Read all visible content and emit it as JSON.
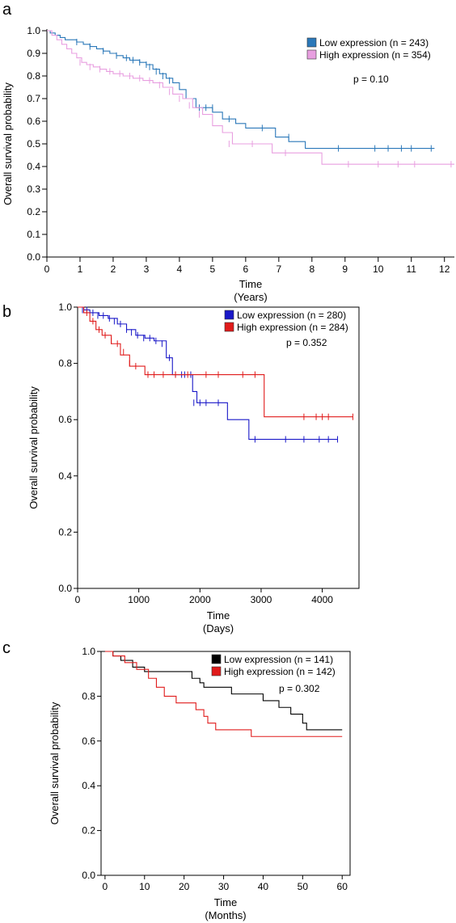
{
  "chart_data": [
    {
      "panel": "a",
      "type": "line",
      "xlabel": "Time",
      "xunit": "(Years)",
      "ylabel": "Overall survival probability",
      "xlim": [
        0,
        12.3
      ],
      "ylim": [
        0,
        1.0
      ],
      "xticks": [
        0,
        1,
        2,
        3,
        4,
        5,
        6,
        7,
        8,
        9,
        10,
        11,
        12
      ],
      "yticks": [
        0,
        0.1,
        0.2,
        0.3,
        0.4,
        0.5,
        0.6,
        0.7,
        0.8,
        0.9,
        1.0
      ],
      "ytick_labels": [
        "0.0",
        "0.1",
        "0.2",
        "0.3",
        "0.4",
        "0.5",
        "0.6",
        "0.7",
        "0.8",
        "0.9",
        "1.0"
      ],
      "xtick_labels": [
        "0",
        "1",
        "2",
        "3",
        "4",
        "5",
        "6",
        "7",
        "8",
        "9",
        "10",
        "11",
        "12"
      ],
      "p_value": "p = 0.10",
      "legend_position": "top-right",
      "box": false,
      "series": [
        {
          "name": "Low expression (n = 243)",
          "color": "#2b78b9",
          "x": [
            0,
            0.1,
            0.25,
            0.4,
            0.55,
            0.7,
            0.9,
            1.1,
            1.3,
            1.5,
            1.7,
            1.9,
            2.1,
            2.3,
            2.5,
            2.8,
            3.0,
            3.2,
            3.4,
            3.6,
            3.8,
            4.0,
            4.2,
            4.5,
            5.0,
            5.3,
            5.7,
            6.0,
            6.5,
            6.9,
            7.3,
            7.8,
            8.2,
            8.8,
            9.5,
            10.5,
            11.7
          ],
          "y": [
            1.0,
            0.99,
            0.98,
            0.97,
            0.96,
            0.96,
            0.95,
            0.94,
            0.93,
            0.92,
            0.91,
            0.9,
            0.89,
            0.88,
            0.87,
            0.86,
            0.85,
            0.83,
            0.81,
            0.79,
            0.77,
            0.74,
            0.7,
            0.66,
            0.64,
            0.61,
            0.59,
            0.57,
            0.57,
            0.53,
            0.51,
            0.48,
            0.48,
            0.48,
            0.48,
            0.48,
            0.48
          ],
          "censor_x": [
            0.9,
            1.3,
            1.7,
            2.1,
            2.4,
            2.6,
            2.8,
            3.0,
            3.1,
            3.3,
            3.5,
            3.7,
            4.6,
            4.8,
            5.0,
            5.5,
            6.5,
            7.3,
            8.8,
            9.9,
            10.3,
            10.7,
            11.0,
            11.6
          ],
          "censor_y": [
            0.95,
            0.93,
            0.91,
            0.89,
            0.88,
            0.87,
            0.86,
            0.85,
            0.84,
            0.82,
            0.8,
            0.78,
            0.66,
            0.66,
            0.66,
            0.61,
            0.57,
            0.53,
            0.48,
            0.48,
            0.48,
            0.48,
            0.48,
            0.48
          ]
        },
        {
          "name": "High expression (n = 354)",
          "color": "#e89fe0",
          "x": [
            0,
            0.15,
            0.3,
            0.45,
            0.6,
            0.75,
            0.9,
            1.05,
            1.2,
            1.4,
            1.6,
            1.8,
            2.0,
            2.3,
            2.6,
            2.9,
            3.2,
            3.5,
            3.8,
            4.1,
            4.4,
            4.7,
            5.0,
            5.3,
            5.6,
            6.0,
            6.8,
            7.5,
            8.3,
            8.6,
            9.5,
            10.5,
            12.3
          ],
          "y": [
            1.0,
            0.98,
            0.96,
            0.94,
            0.92,
            0.9,
            0.88,
            0.86,
            0.85,
            0.84,
            0.83,
            0.82,
            0.81,
            0.8,
            0.79,
            0.78,
            0.77,
            0.75,
            0.72,
            0.7,
            0.66,
            0.63,
            0.58,
            0.55,
            0.5,
            0.5,
            0.46,
            0.46,
            0.41,
            0.41,
            0.41,
            0.41,
            0.41
          ],
          "censor_x": [
            1.0,
            1.3,
            1.6,
            1.9,
            2.2,
            2.5,
            2.8,
            3.1,
            3.4,
            3.7,
            4.0,
            4.3,
            4.6,
            5.5,
            6.2,
            7.2,
            9.1,
            10.0,
            10.6,
            11.1,
            12.2
          ],
          "censor_y": [
            0.86,
            0.84,
            0.83,
            0.82,
            0.81,
            0.8,
            0.79,
            0.78,
            0.76,
            0.73,
            0.7,
            0.67,
            0.63,
            0.5,
            0.5,
            0.46,
            0.41,
            0.41,
            0.41,
            0.41,
            0.41
          ]
        }
      ]
    },
    {
      "panel": "b",
      "type": "line",
      "xlabel": "Time",
      "xunit": "(Days)",
      "ylabel": "Overall survival probability",
      "xlim": [
        0,
        4600
      ],
      "ylim": [
        0,
        1.0
      ],
      "xticks": [
        0,
        1000,
        2000,
        3000,
        4000
      ],
      "xtick_labels": [
        "0",
        "1000",
        "2000",
        "3000",
        "4000"
      ],
      "yticks": [
        0,
        0.2,
        0.4,
        0.6,
        0.8,
        1.0
      ],
      "ytick_labels": [
        "0.0",
        "0.2",
        "0.4",
        "0.6",
        "0.8",
        "1.0"
      ],
      "p_value": "p = 0.352",
      "legend_position": "top-right",
      "box": true,
      "series": [
        {
          "name": "Low expression (n = 280)",
          "color": "#1a18c8",
          "x": [
            0,
            100,
            200,
            350,
            500,
            650,
            800,
            950,
            1100,
            1250,
            1450,
            1550,
            1800,
            1880,
            1950,
            2450,
            2800,
            3000,
            4250
          ],
          "y": [
            1.0,
            0.99,
            0.98,
            0.97,
            0.96,
            0.94,
            0.92,
            0.9,
            0.89,
            0.88,
            0.82,
            0.76,
            0.76,
            0.7,
            0.66,
            0.6,
            0.53,
            0.53,
            0.53
          ],
          "censor_x": [
            80,
            150,
            250,
            330,
            420,
            520,
            600,
            700,
            800,
            880,
            980,
            1080,
            1180,
            1280,
            1380,
            1500,
            1600,
            1700,
            1750,
            1850,
            1900,
            2000,
            2100,
            2300,
            2900,
            3400,
            3700,
            3950,
            4100,
            4250
          ],
          "censor_y": [
            0.99,
            0.99,
            0.98,
            0.97,
            0.97,
            0.96,
            0.95,
            0.94,
            0.92,
            0.91,
            0.9,
            0.89,
            0.89,
            0.88,
            0.87,
            0.82,
            0.76,
            0.76,
            0.76,
            0.76,
            0.66,
            0.66,
            0.66,
            0.66,
            0.53,
            0.53,
            0.53,
            0.53,
            0.53,
            0.53
          ]
        },
        {
          "name": "High expression (n = 284)",
          "color": "#e01b1b",
          "x": [
            0,
            100,
            200,
            300,
            400,
            550,
            700,
            850,
            1100,
            1500,
            2000,
            2500,
            3050,
            3500,
            4500
          ],
          "y": [
            1.0,
            0.98,
            0.95,
            0.92,
            0.9,
            0.87,
            0.83,
            0.79,
            0.76,
            0.76,
            0.76,
            0.76,
            0.61,
            0.61,
            0.61
          ],
          "censor_x": [
            150,
            250,
            350,
            450,
            550,
            650,
            750,
            850,
            950,
            1150,
            1250,
            1400,
            1600,
            1800,
            2100,
            2300,
            2700,
            2900,
            3700,
            3900,
            4000,
            4100,
            4500
          ],
          "censor_y": [
            0.98,
            0.95,
            0.92,
            0.9,
            0.88,
            0.87,
            0.84,
            0.8,
            0.79,
            0.76,
            0.76,
            0.76,
            0.76,
            0.76,
            0.76,
            0.76,
            0.76,
            0.76,
            0.61,
            0.61,
            0.61,
            0.61,
            0.61
          ]
        }
      ]
    },
    {
      "panel": "c",
      "type": "line",
      "xlabel": "Time",
      "xunit": "(Months)",
      "ylabel": "Overall survival probability",
      "xlim": [
        -1,
        62
      ],
      "ylim": [
        0,
        1.0
      ],
      "xticks": [
        0,
        10,
        20,
        30,
        40,
        50,
        60
      ],
      "xtick_labels": [
        "0",
        "10",
        "20",
        "30",
        "40",
        "50",
        "60"
      ],
      "yticks": [
        0,
        0.2,
        0.4,
        0.6,
        0.8,
        1.0
      ],
      "ytick_labels": [
        "0.0",
        "0.2",
        "0.4",
        "0.6",
        "0.8",
        "1.0"
      ],
      "p_value": "p = 0.302",
      "legend_position": "top-right",
      "box": true,
      "series": [
        {
          "name": "Low expression (n = 141)",
          "color": "#000000",
          "x": [
            0,
            2,
            4,
            7,
            10,
            22,
            24,
            25,
            27,
            32,
            40,
            44,
            47,
            50,
            51,
            60
          ],
          "y": [
            1.0,
            0.98,
            0.96,
            0.93,
            0.91,
            0.88,
            0.86,
            0.84,
            0.84,
            0.81,
            0.78,
            0.75,
            0.72,
            0.68,
            0.65,
            0.65
          ],
          "censor_x": [],
          "censor_y": []
        },
        {
          "name": "High expression (n = 142)",
          "color": "#e01b1b",
          "x": [
            0,
            2,
            5,
            8,
            11,
            13,
            15,
            18,
            23,
            25,
            26,
            28,
            30,
            37,
            45,
            60
          ],
          "y": [
            1.0,
            0.98,
            0.95,
            0.92,
            0.88,
            0.84,
            0.8,
            0.77,
            0.74,
            0.71,
            0.68,
            0.65,
            0.65,
            0.62,
            0.62,
            0.62
          ],
          "censor_x": [],
          "censor_y": []
        }
      ]
    }
  ]
}
